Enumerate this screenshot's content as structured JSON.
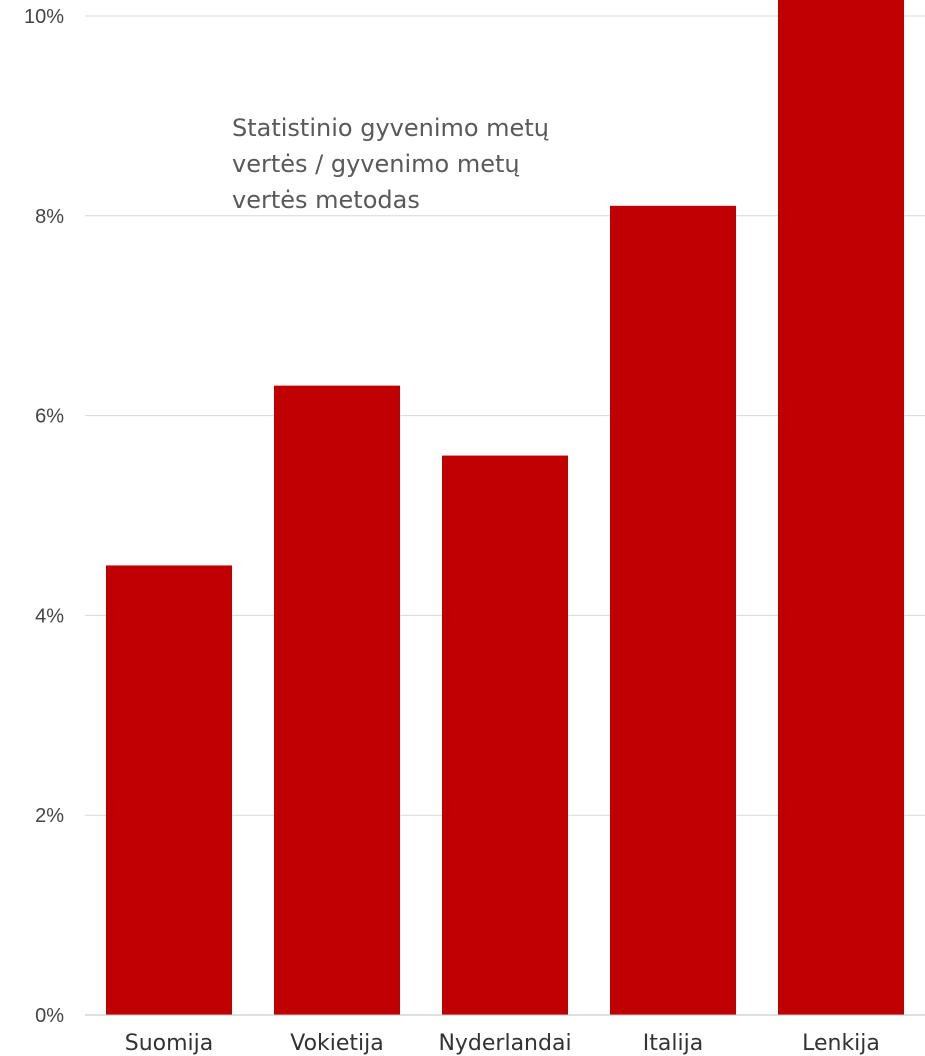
{
  "chart_data": {
    "type": "bar",
    "categories": [
      "Suomija",
      "Vokietija",
      "Nyderlandai",
      "Italija",
      "Lenkija"
    ],
    "values": [
      4.5,
      6.3,
      5.6,
      8.1,
      10.3
    ],
    "ylim": [
      0,
      10
    ],
    "yticks": [
      0,
      2,
      4,
      6,
      8,
      10
    ],
    "ytick_labels": [
      "0%",
      "2%",
      "4%",
      "6%",
      "8%",
      "10%"
    ],
    "annotation_lines": [
      "Statistinio gyvenimo metų",
      "vertės / gyvenimo metų",
      "vertės metodas"
    ],
    "grid": true,
    "bar_color": "#C00000",
    "grid_color": "#d9d9d9",
    "axis_color": "#bfbfbf"
  }
}
